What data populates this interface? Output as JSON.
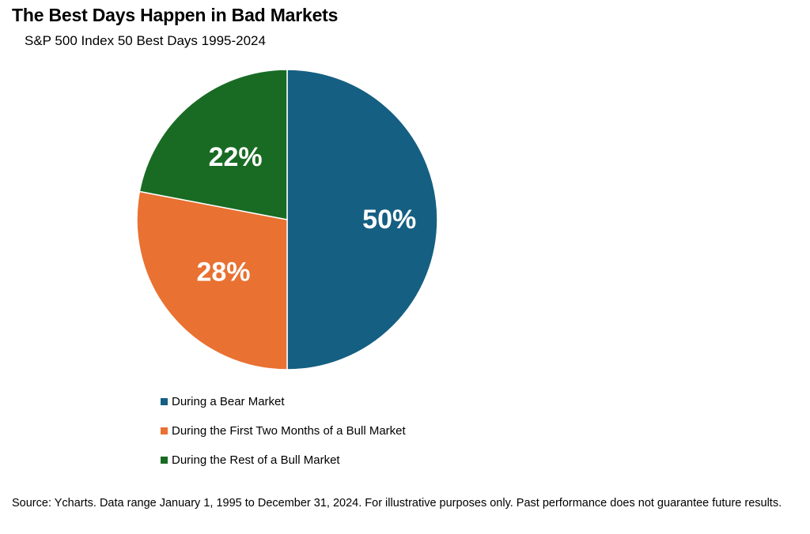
{
  "chart_data": {
    "type": "pie",
    "title": "The Best Days Happen in Bad Markets",
    "subtitle": "S&P 500 Index 50 Best Days 1995-2024",
    "slices": [
      {
        "label": "During a Bear Market",
        "value": 50,
        "display": "50%",
        "color": "#155F82"
      },
      {
        "label": "During the First Two Months of a Bull Market",
        "value": 28,
        "display": "28%",
        "color": "#E97132"
      },
      {
        "label": "During the Rest of a Bull Market",
        "value": 22,
        "display": "22%",
        "color": "#196B24"
      }
    ],
    "legend_position": "bottom"
  },
  "footnote": "Source: Ycharts. Data range January 1, 1995 to December 31, 2024. For illustrative purposes only. Past performance does not guarantee future results."
}
